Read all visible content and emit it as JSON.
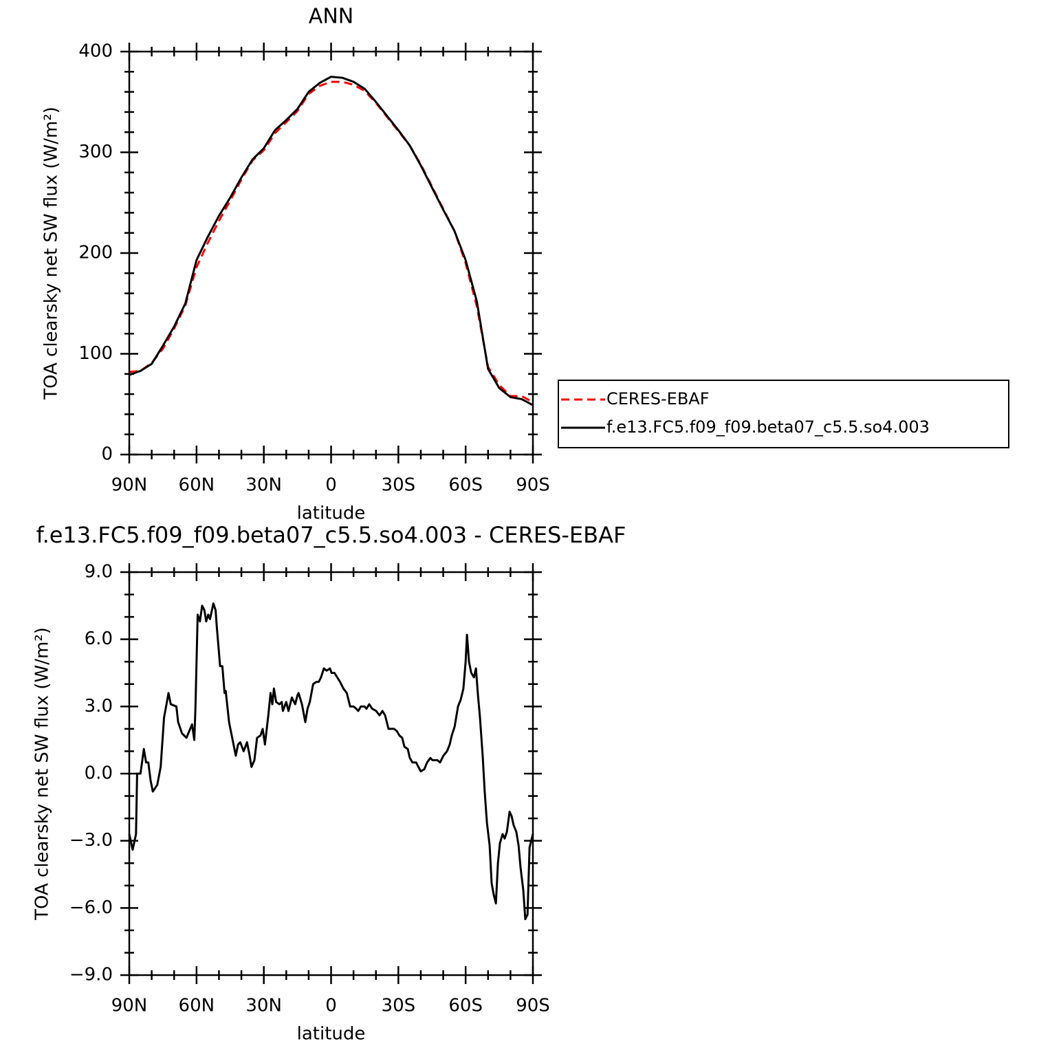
{
  "chart_data": [
    {
      "type": "line",
      "title": "ANN",
      "xlabel": "latitude",
      "ylabel": "TOA clearsky net SW flux (W/m²)",
      "x": [
        90,
        85,
        80,
        75,
        70,
        65,
        60,
        55,
        50,
        45,
        40,
        35,
        30,
        25,
        20,
        15,
        10,
        5,
        0,
        -5,
        -10,
        -15,
        -20,
        -25,
        -30,
        -35,
        -40,
        -45,
        -50,
        -55,
        -60,
        -65,
        -70,
        -75,
        -80,
        -85,
        -90
      ],
      "series": [
        {
          "name": "CERES-EBAF",
          "color": "#ff0000",
          "linestyle": "dashed",
          "values": [
            82,
            83,
            91,
            105,
            125,
            148,
            186,
            210,
            232,
            252,
            273,
            292,
            302,
            319,
            330,
            341,
            358,
            366,
            370,
            370,
            367,
            361,
            349,
            335,
            321,
            307,
            288,
            266,
            244,
            222,
            190,
            147,
            87,
            69,
            58,
            58,
            52
          ]
        },
        {
          "name": "f.e13.FC5.f09_f09.beta07_c5.5.so4.003",
          "color": "#000000",
          "linestyle": "solid",
          "values": [
            79,
            83,
            90,
            108,
            127,
            150,
            193,
            216,
            237,
            255,
            275,
            293,
            304,
            322,
            332,
            343,
            360,
            369,
            375,
            374,
            370,
            363,
            350,
            336,
            322,
            307,
            287,
            265,
            243,
            222,
            193,
            152,
            85,
            66,
            57,
            55,
            49
          ]
        }
      ],
      "xlim": [
        90,
        -90
      ],
      "xticks": [
        {
          "value": 90,
          "label": "90N"
        },
        {
          "value": 60,
          "label": "60N"
        },
        {
          "value": 30,
          "label": "30N"
        },
        0,
        {
          "value": -30,
          "label": "30S"
        },
        {
          "value": -60,
          "label": "60S"
        },
        {
          "value": -90,
          "label": "90S"
        }
      ],
      "xminorticks": [
        80,
        70,
        50,
        40,
        20,
        10,
        -10,
        -20,
        -40,
        -50,
        -70,
        -80
      ],
      "ylim": [
        0,
        400
      ],
      "yticks": [
        0,
        100,
        200,
        300,
        400
      ],
      "yminorticks": [
        20,
        40,
        60,
        80,
        120,
        140,
        160,
        180,
        220,
        240,
        260,
        280,
        320,
        340,
        360,
        380
      ],
      "legend": "right"
    },
    {
      "type": "line",
      "title": "f.e13.FC5.f09_f09.beta07_c5.5.so4.003 - CERES-EBAF",
      "xlabel": "latitude",
      "ylabel": "TOA clearsky net SW flux (W/m²)",
      "x": [
        90,
        88.5,
        87,
        86.5,
        85,
        83.5,
        82.5,
        81.5,
        80.5,
        79.5,
        77.5,
        76,
        74.5,
        72.5,
        71.5,
        69,
        68.2,
        66.5,
        64.5,
        62,
        61,
        60.5,
        59.5,
        58.5,
        57.5,
        56.5,
        55.7,
        54.8,
        54,
        52.5,
        51.5,
        51,
        49.5,
        48.5,
        47.5,
        47,
        45.5,
        44.5,
        42.5,
        41.5,
        40.5,
        39,
        37.5,
        36.5,
        35.5,
        34.2,
        33,
        31.5,
        30.5,
        29.5,
        28,
        27,
        26.2,
        25.5,
        24.5,
        23,
        22,
        21.5,
        20,
        19,
        17.5,
        16,
        15,
        14.5,
        13,
        11.5,
        10.5,
        9.5,
        8,
        6.5,
        5.5,
        4.5,
        3.2,
        2,
        0.5,
        -0.2,
        -1.5,
        -4,
        -5.5,
        -7,
        -8.5,
        -10,
        -11.2,
        -12.1,
        -13.3,
        -14.9,
        -15.8,
        -17,
        -18.3,
        -20.1,
        -21.6,
        -22.9,
        -24.1,
        -25.6,
        -26.8,
        -28.1,
        -29.3,
        -30.5,
        -31.7,
        -32.7,
        -34.2,
        -35.1,
        -36.3,
        -37.9,
        -40,
        -41.6,
        -42.8,
        -44.3,
        -45.2,
        -46.2,
        -47.4,
        -48.6,
        -50.1,
        -51.7,
        -52.9,
        -53.8,
        -55.1,
        -56.6,
        -57.8,
        -59,
        -60,
        -60.6,
        -61.5,
        -62.5,
        -63.7,
        -64.6,
        -65.5,
        -66.4,
        -67.6,
        -68.5,
        -69.5,
        -70.7,
        -71.6,
        -72.5,
        -73.5,
        -74.4,
        -75.3,
        -76.5,
        -77.4,
        -78.4,
        -79.6,
        -80.5,
        -81.4,
        -82.6,
        -83.6,
        -84.5,
        -85.7,
        -86.6,
        -87.6,
        -88.5,
        -90
      ],
      "series": [
        {
          "color": "#000000",
          "linestyle": "solid",
          "values": [
            -2.7,
            -3.4,
            -2.7,
            0,
            0,
            1.1,
            0.5,
            0.5,
            -0.3,
            -0.8,
            -0.5,
            0.3,
            2.5,
            3.6,
            3.1,
            3.0,
            2.3,
            1.8,
            1.6,
            2.2,
            1.5,
            2.9,
            7.1,
            6.8,
            7.5,
            7.3,
            6.8,
            7.1,
            6.9,
            7.6,
            7.3,
            6.6,
            4.8,
            4.8,
            3.6,
            3.7,
            2.3,
            1.8,
            0.8,
            1.3,
            1.4,
            1.0,
            1.4,
            0.9,
            0.3,
            0.6,
            1.6,
            1.7,
            2.0,
            1.3,
            2.6,
            3.6,
            3.1,
            3.8,
            3.2,
            3.1,
            3.2,
            2.8,
            3.2,
            2.8,
            3.4,
            3.1,
            3.5,
            3.6,
            3.1,
            2.3,
            2.9,
            3.2,
            4.0,
            4.1,
            4.1,
            4.3,
            4.7,
            4.6,
            4.7,
            4.5,
            4.5,
            4.1,
            3.8,
            3.6,
            3.0,
            3.0,
            2.9,
            2.8,
            3.0,
            3.0,
            2.9,
            3.1,
            2.9,
            2.8,
            2.6,
            2.8,
            2.6,
            2.0,
            2.0,
            2.0,
            1.9,
            1.7,
            1.6,
            1.2,
            1.1,
            0.7,
            0.5,
            0.5,
            0.1,
            0.2,
            0.5,
            0.7,
            0.6,
            0.6,
            0.6,
            0.5,
            0.8,
            1.0,
            1.3,
            1.7,
            2.1,
            3.0,
            3.3,
            3.8,
            5.0,
            6.2,
            5.0,
            4.5,
            4.3,
            4.7,
            3.5,
            2.5,
            0.8,
            -0.8,
            -2.2,
            -3.2,
            -4.9,
            -5.4,
            -5.8,
            -4.0,
            -3.1,
            -2.7,
            -2.9,
            -2.6,
            -1.7,
            -1.9,
            -2.3,
            -2.6,
            -3.2,
            -4.2,
            -5.2,
            -6.5,
            -6.3,
            -3.3,
            -2.7
          ]
        }
      ],
      "xlim": [
        90,
        -90
      ],
      "xticks": [
        {
          "value": 90,
          "label": "90N"
        },
        {
          "value": 60,
          "label": "60N"
        },
        {
          "value": 30,
          "label": "30N"
        },
        0,
        {
          "value": -30,
          "label": "30S"
        },
        {
          "value": -60,
          "label": "60S"
        },
        {
          "value": -90,
          "label": "90S"
        }
      ],
      "xminorticks": [
        80,
        70,
        50,
        40,
        20,
        10,
        -10,
        -20,
        -40,
        -50,
        -70,
        -80
      ],
      "ylim": [
        -9,
        9
      ],
      "yticks": [
        {
          "value": -9,
          "label": "−9.0"
        },
        {
          "value": -6,
          "label": "−6.0"
        },
        {
          "value": -3,
          "label": "−3.0"
        },
        {
          "value": 0,
          "label": "0.0"
        },
        {
          "value": 3,
          "label": "3.0"
        },
        {
          "value": 6,
          "label": "6.0"
        },
        {
          "value": 9,
          "label": "9.0"
        }
      ],
      "yminorticks": [
        -8,
        -7,
        -5,
        -4,
        -2,
        -1,
        1,
        2,
        4,
        5,
        7,
        8
      ]
    }
  ]
}
